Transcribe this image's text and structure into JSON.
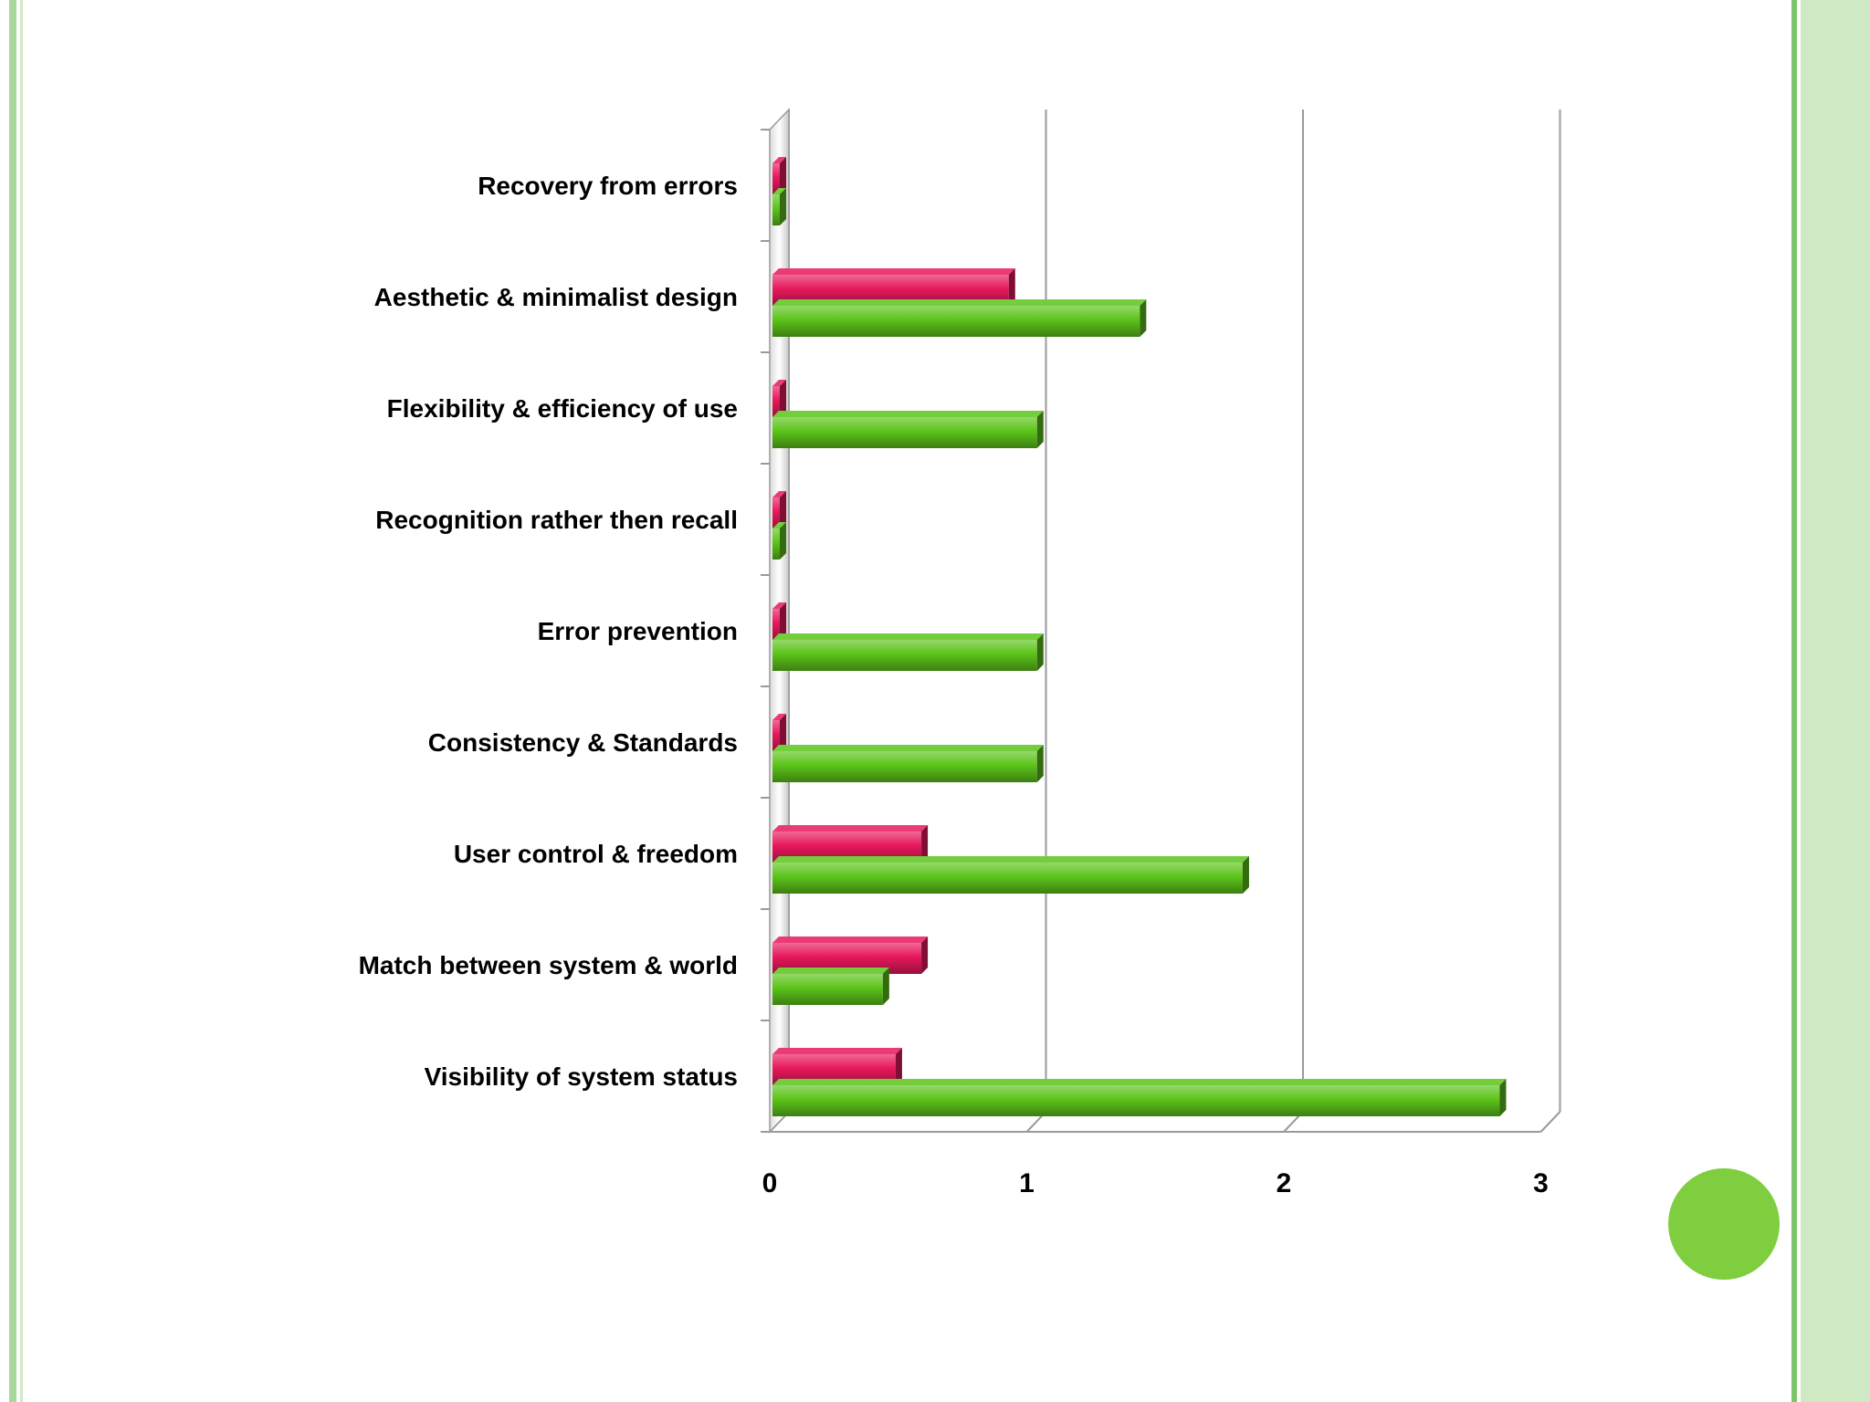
{
  "colors": {
    "frame_light": "#cfe9c4",
    "frame_mid": "#a8d99a",
    "frame_dark": "#7cc46a",
    "circle": "#7fce3f",
    "pink_series": "#e8185c",
    "green_series": "#5cc41a"
  },
  "chart_data": {
    "type": "bar",
    "orientation": "horizontal",
    "style": "3d",
    "title": "",
    "xlabel": "",
    "ylabel": "",
    "xlim": [
      0,
      3
    ],
    "x_ticks": [
      "0",
      "1",
      "2",
      "3"
    ],
    "grid": true,
    "legend": "none",
    "categories": [
      "Recovery from errors",
      "Aesthetic & minimalist design",
      "Flexibility & efficiency of use",
      "Recognition rather then recall",
      "Error prevention",
      "Consistency & Standards",
      "User control & freedom",
      "Match between system & world",
      "Visibility of system status"
    ],
    "series": [
      {
        "color": "#e8185c",
        "values": [
          0,
          0.93,
          0,
          0,
          0,
          0,
          0.59,
          0.59,
          0.49
        ]
      },
      {
        "color": "#5cc41a",
        "values": [
          0,
          1.44,
          1.04,
          0,
          1.04,
          1.04,
          1.84,
          0.44,
          2.84
        ]
      }
    ]
  }
}
